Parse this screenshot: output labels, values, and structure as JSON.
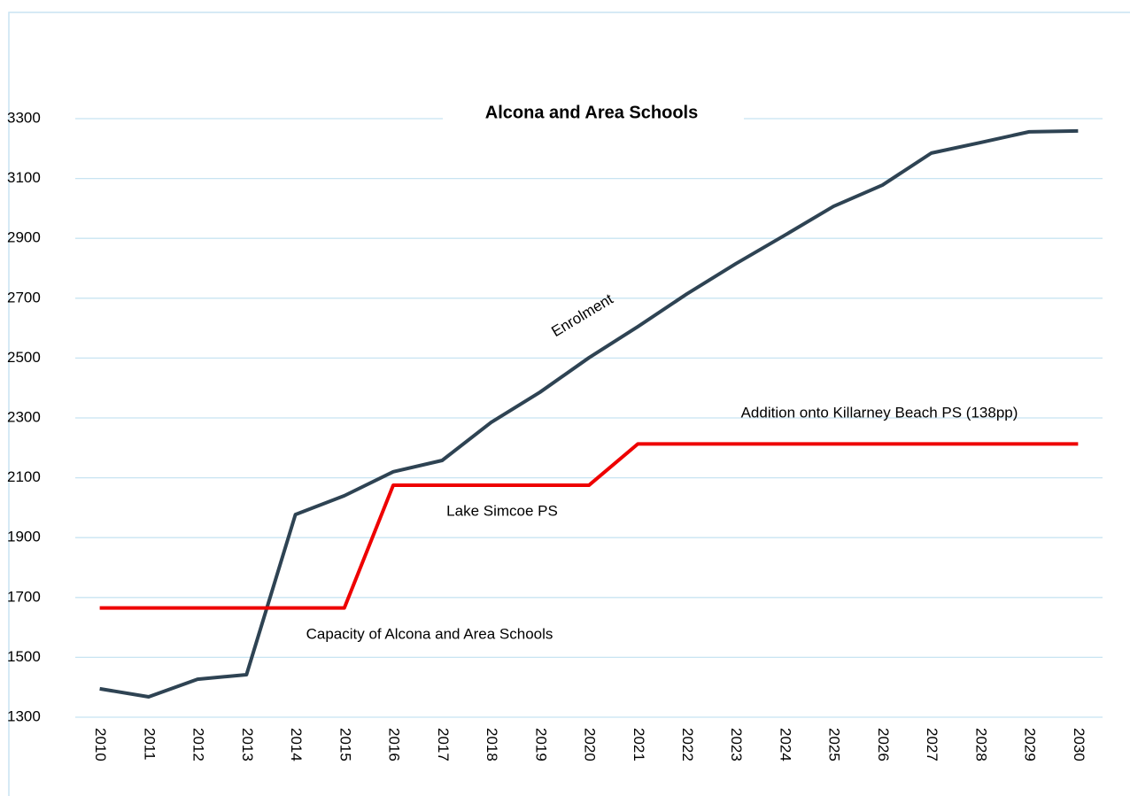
{
  "chart_data": {
    "type": "line",
    "title": "Alcona and Area Schools",
    "categories": [
      "2010",
      "2011",
      "2012",
      "2013",
      "2014",
      "2015",
      "2016",
      "2017",
      "2018",
      "2019",
      "2020",
      "2021",
      "2022",
      "2023",
      "2024",
      "2025",
      "2026",
      "2027",
      "2028",
      "2029",
      "2030"
    ],
    "series": [
      {
        "name": "Enrolment",
        "color": "#2e4353",
        "values": [
          1395,
          1368,
          1427,
          1442,
          1977,
          2040,
          2120,
          2158,
          2285,
          2386,
          2501,
          2605,
          2714,
          2815,
          2910,
          3007,
          3078,
          3185,
          3220,
          3256,
          3259
        ]
      },
      {
        "name": "Capacity of Alcona and Area Schools",
        "color": "#ee0000",
        "values": [
          1665,
          1665,
          1665,
          1665,
          1665,
          1665,
          2075,
          2075,
          2075,
          2075,
          2075,
          2213,
          2213,
          2213,
          2213,
          2213,
          2213,
          2213,
          2213,
          2213,
          2213
        ]
      }
    ],
    "annotations": [
      "Lake Simcoe PS",
      "Addition onto Killarney Beach PS (138pp)"
    ],
    "ylim": [
      1300,
      3300
    ],
    "yticks": [
      1300,
      1500,
      1700,
      1900,
      2100,
      2300,
      2500,
      2700,
      2900,
      3100,
      3300
    ],
    "grid": true
  }
}
